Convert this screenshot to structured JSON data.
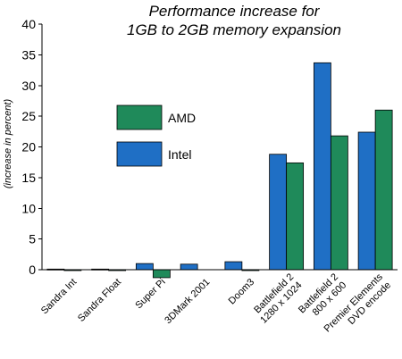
{
  "chart_data": {
    "type": "bar",
    "title_lines": [
      "Performance increase for",
      "1GB to 2GB memory expansion"
    ],
    "ylabel": "(increase in percent)",
    "xlabel": "",
    "ylim": [
      -1.5,
      40
    ],
    "yticks": [
      0,
      5,
      10,
      15,
      20,
      25,
      30,
      35,
      40
    ],
    "categories": [
      [
        "Sandra Int"
      ],
      [
        "Sandra Float"
      ],
      [
        "Super Pi"
      ],
      [
        "3DMark 2001"
      ],
      [
        "Doom3"
      ],
      [
        "Battlefield 2",
        "1280 x 1024"
      ],
      [
        "Battlefield 2",
        "800 x 600"
      ],
      [
        "Premier Elements",
        "DVD encode"
      ]
    ],
    "series": [
      {
        "name": "Intel",
        "color": "#1f6fc5",
        "values": [
          0.1,
          0.1,
          1.0,
          0.9,
          1.3,
          18.8,
          33.7,
          22.4
        ]
      },
      {
        "name": "AMD",
        "color": "#1f8a5a",
        "values": [
          -0.1,
          -0.1,
          -1.3,
          0.0,
          -0.1,
          17.4,
          21.8,
          26.0
        ]
      }
    ],
    "legend_order": [
      "AMD",
      "Intel"
    ],
    "legend_position": "top-left",
    "grid": false
  }
}
